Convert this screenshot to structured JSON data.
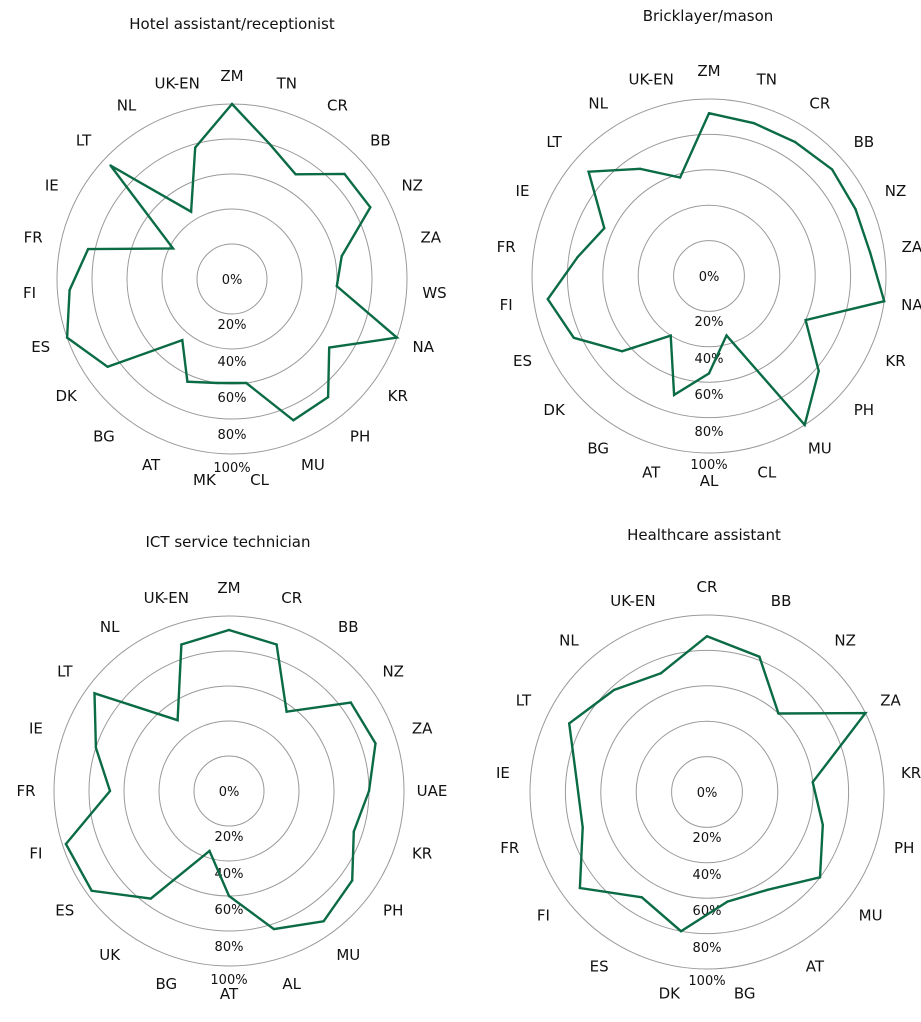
{
  "colors": {
    "series": "#0a6b45",
    "grid": "#9a9a9a"
  },
  "chart_data": [
    {
      "type": "radar",
      "title": "Hotel assistant/receptionist",
      "rlim": [
        0,
        100
      ],
      "ticks": [
        "0%",
        "20%",
        "40%",
        "60%",
        "80%",
        "100%"
      ],
      "grid": true,
      "categories": [
        "ZM",
        "TN",
        "CR",
        "BB",
        "NZ",
        "ZA",
        "WS",
        "NA",
        "KR",
        "PH",
        "MU",
        "CL",
        "MK",
        "AT",
        "BG",
        "DK",
        "ES",
        "FI",
        "FR",
        "IE",
        "LT",
        "NL",
        "UK-EN"
      ],
      "values": [
        100,
        80,
        70,
        88,
        89,
        64,
        60,
        100,
        68,
        87,
        88,
        60,
        60,
        64,
        45,
        87,
        100,
        93,
        84,
        38,
        95,
        45,
        78
      ]
    },
    {
      "type": "radar",
      "title": "Bricklayer/mason",
      "rlim": [
        0,
        100
      ],
      "ticks": [
        "0%",
        "20%",
        "40%",
        "60%",
        "80%",
        "100%"
      ],
      "grid": true,
      "categories": [
        "ZM",
        "TN",
        "CR",
        "BB",
        "NZ",
        "ZA",
        "NA",
        "KR",
        "PH",
        "MU",
        "CL",
        "AL",
        "AT",
        "BG",
        "DK",
        "ES",
        "FI",
        "FR",
        "IE",
        "LT",
        "NL",
        "UK-EN"
      ],
      "values": [
        92,
        90,
        90,
        92,
        91,
        92,
        100,
        60,
        82,
        100,
        35,
        55,
        70,
        40,
        65,
        84,
        92,
        75,
        65,
        90,
        72,
        58
      ]
    },
    {
      "type": "radar",
      "title": "ICT service technician",
      "rlim": [
        0,
        100
      ],
      "ticks": [
        "0%",
        "20%",
        "40%",
        "60%",
        "80%",
        "100%"
      ],
      "grid": true,
      "categories": [
        "ZM",
        "CR",
        "BB",
        "NZ",
        "ZA",
        "UAE",
        "KR",
        "PH",
        "MU",
        "AL",
        "AT",
        "BG",
        "UK",
        "ES",
        "FI",
        "FR",
        "IE",
        "LT",
        "NL",
        "UK-EN"
      ],
      "values": [
        92,
        88,
        56,
        86,
        88,
        80,
        75,
        87,
        92,
        83,
        60,
        36,
        76,
        97,
        98,
        68,
        80,
        95,
        50,
        88
      ]
    },
    {
      "type": "radar",
      "title": "Healthcare assistant",
      "rlim": [
        0,
        100
      ],
      "ticks": [
        "0%",
        "20%",
        "40%",
        "60%",
        "80%",
        "100%"
      ],
      "grid": true,
      "categories": [
        "CR",
        "BB",
        "NZ",
        "ZA",
        "KR",
        "PH",
        "MU",
        "AT",
        "BG",
        "DK",
        "ES",
        "FI",
        "FR",
        "IE",
        "LT",
        "NL",
        "UK-EN"
      ],
      "values": [
        88,
        82,
        60,
        100,
        60,
        68,
        80,
        65,
        63,
        80,
        70,
        90,
        73,
        74,
        87,
        78,
        72
      ]
    }
  ]
}
